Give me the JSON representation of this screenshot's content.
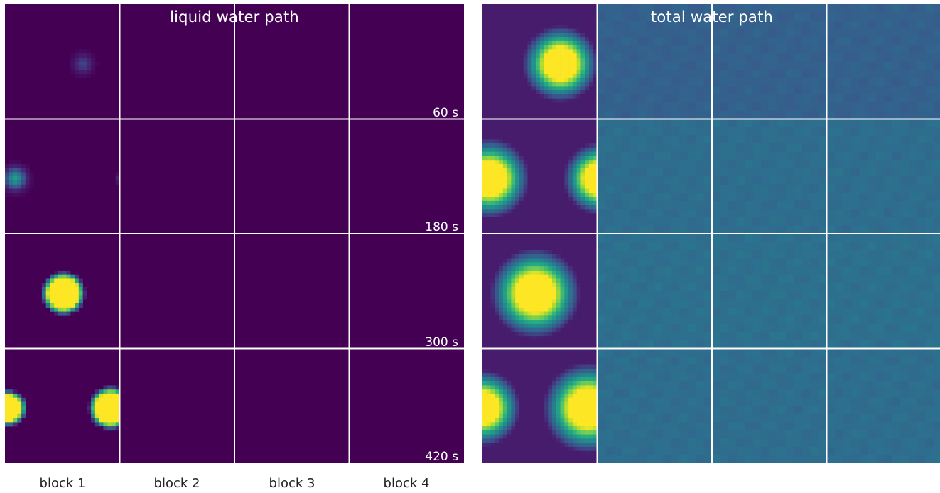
{
  "chart_data": [
    {
      "type": "heatmap",
      "title": "liquid water path",
      "rows": [
        "60 s",
        "180 s",
        "300 s",
        "420 s"
      ],
      "columns": [
        "block 1",
        "block 2",
        "block 3",
        "block 4"
      ],
      "colormap": "viridis",
      "background_level": 0.0,
      "blobs": [
        {
          "row": 0,
          "col": 0,
          "cx": 0.68,
          "cy": 0.52,
          "r": 0.12,
          "peak": 0.22,
          "profile": "smooth"
        },
        {
          "row": 1,
          "col": 0,
          "cx": 0.09,
          "cy": 0.52,
          "r": 0.13,
          "peak": 0.55,
          "profile": "smooth"
        },
        {
          "row": 1,
          "col": 0,
          "cx": 1.02,
          "cy": 0.52,
          "r": 0.06,
          "peak": 0.3,
          "profile": "smooth"
        },
        {
          "row": 2,
          "col": 0,
          "cx": 0.51,
          "cy": 0.52,
          "r": 0.17,
          "peak": 1.0,
          "profile": "sharp"
        },
        {
          "row": 3,
          "col": 0,
          "cx": 0.03,
          "cy": 0.52,
          "r": 0.14,
          "peak": 1.0,
          "profile": "sharp"
        },
        {
          "row": 3,
          "col": 0,
          "cx": 0.92,
          "cy": 0.52,
          "r": 0.17,
          "peak": 1.0,
          "profile": "sharp"
        }
      ]
    },
    {
      "type": "heatmap",
      "title": "total water path",
      "rows": [
        "60 s",
        "180 s",
        "300 s",
        "420 s"
      ],
      "columns": [
        "block 1",
        "block 2",
        "block 3",
        "block 4"
      ],
      "colormap": "viridis",
      "row_background_levels": [
        0.31,
        0.36,
        0.37,
        0.36
      ],
      "blobs": [
        {
          "row": 0,
          "col": 0,
          "cx": 0.68,
          "cy": 0.52,
          "r": 0.38,
          "peak": 1.0,
          "profile": "wide"
        },
        {
          "row": 1,
          "col": 0,
          "cx": 0.06,
          "cy": 0.52,
          "r": 0.4,
          "peak": 1.0,
          "profile": "wide"
        },
        {
          "row": 1,
          "col": 0,
          "cx": 1.02,
          "cy": 0.52,
          "r": 0.36,
          "peak": 1.0,
          "profile": "wide"
        },
        {
          "row": 2,
          "col": 0,
          "cx": 0.46,
          "cy": 0.52,
          "r": 0.45,
          "peak": 1.0,
          "profile": "wide"
        },
        {
          "row": 3,
          "col": 0,
          "cx": 0.0,
          "cy": 0.52,
          "r": 0.38,
          "peak": 1.0,
          "profile": "wide"
        },
        {
          "row": 3,
          "col": 0,
          "cx": 0.92,
          "cy": 0.52,
          "r": 0.45,
          "peak": 1.0,
          "profile": "wide"
        }
      ]
    }
  ],
  "colors": {
    "viridis_low": "#440154",
    "viridis_high": "#fde725",
    "grid": "#ffffff"
  }
}
